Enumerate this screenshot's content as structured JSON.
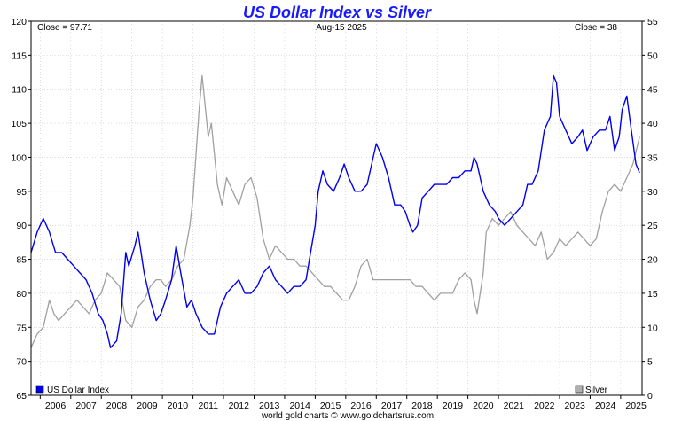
{
  "chart_data": {
    "type": "line",
    "title": "US Dollar Index vs Silver",
    "date_label": "Aug-15  2025",
    "close_left": "Close = 97.71",
    "close_right": "Close = 38",
    "footer": "world gold charts © www.goldchartsrus.com",
    "x_ticks": [
      "2006",
      "2007",
      "2008",
      "2009",
      "2010",
      "2011",
      "2012",
      "2013",
      "2014",
      "2015",
      "2016",
      "2017",
      "2018",
      "2019",
      "2020",
      "2021",
      "2022",
      "2023",
      "2024",
      "2025"
    ],
    "y_left_ticks": [
      65,
      70,
      75,
      80,
      85,
      90,
      95,
      100,
      105,
      110,
      115,
      120
    ],
    "y_right_ticks": [
      0,
      5,
      10,
      15,
      20,
      25,
      30,
      35,
      40,
      45,
      50,
      55
    ],
    "y_left_lim": [
      65,
      120
    ],
    "y_right_lim": [
      0,
      55
    ],
    "x_lim": [
      2005.7,
      2025.7
    ],
    "grid": true,
    "legend_left": "US Dollar Index",
    "legend_right": "Silver",
    "series": [
      {
        "name": "US Dollar Index",
        "axis": "left",
        "color": "#0000ee",
        "x": [
          2005.7,
          2005.9,
          2006.1,
          2006.3,
          2006.5,
          2006.7,
          2006.9,
          2007.1,
          2007.3,
          2007.5,
          2007.7,
          2007.9,
          2008.05,
          2008.2,
          2008.3,
          2008.5,
          2008.65,
          2008.8,
          2008.9,
          2009.1,
          2009.2,
          2009.4,
          2009.6,
          2009.8,
          2009.95,
          2010.1,
          2010.3,
          2010.45,
          2010.6,
          2010.8,
          2010.95,
          2011.1,
          2011.3,
          2011.5,
          2011.7,
          2011.9,
          2012.1,
          2012.3,
          2012.5,
          2012.7,
          2012.9,
          2013.1,
          2013.3,
          2013.5,
          2013.7,
          2013.9,
          2014.1,
          2014.3,
          2014.5,
          2014.7,
          2014.85,
          2015.0,
          2015.1,
          2015.25,
          2015.4,
          2015.6,
          2015.8,
          2015.95,
          2016.1,
          2016.3,
          2016.5,
          2016.7,
          2016.9,
          2017.0,
          2017.2,
          2017.4,
          2017.6,
          2017.8,
          2017.95,
          2018.1,
          2018.2,
          2018.35,
          2018.5,
          2018.7,
          2018.9,
          2019.1,
          2019.3,
          2019.5,
          2019.7,
          2019.9,
          2020.1,
          2020.2,
          2020.3,
          2020.5,
          2020.7,
          2020.9,
          2021.0,
          2021.2,
          2021.4,
          2021.6,
          2021.8,
          2021.95,
          2022.1,
          2022.3,
          2022.5,
          2022.7,
          2022.8,
          2022.9,
          2023.0,
          2023.2,
          2023.4,
          2023.6,
          2023.75,
          2023.9,
          2024.1,
          2024.3,
          2024.5,
          2024.65,
          2024.8,
          2024.95,
          2025.05,
          2025.2,
          2025.35,
          2025.5,
          2025.62
        ],
        "values": [
          86,
          89,
          91,
          89,
          86,
          86,
          85,
          84,
          83,
          82,
          80,
          77,
          76,
          74,
          72,
          73,
          77,
          86,
          84,
          87,
          89,
          83,
          79,
          76,
          77,
          79,
          82,
          87,
          83,
          78,
          79,
          77,
          75,
          74,
          74,
          78,
          80,
          81,
          82,
          80,
          80,
          81,
          83,
          84,
          82,
          81,
          80,
          81,
          81,
          82,
          86,
          90,
          95,
          98,
          96,
          95,
          97,
          99,
          97,
          95,
          95,
          96,
          100,
          102,
          100,
          97,
          93,
          93,
          92,
          90,
          89,
          90,
          94,
          95,
          96,
          96,
          96,
          97,
          97,
          98,
          98,
          100,
          99,
          95,
          93,
          92,
          91,
          90,
          91,
          92,
          93,
          96,
          96,
          98,
          104,
          106,
          112,
          111,
          106,
          104,
          102,
          103,
          104,
          101,
          103,
          104,
          104,
          106,
          101,
          103,
          107,
          109,
          104,
          99,
          97.71
        ]
      },
      {
        "name": "Silver",
        "axis": "right",
        "color": "#a0a0a0",
        "x": [
          2005.7,
          2005.9,
          2006.1,
          2006.3,
          2006.45,
          2006.6,
          2006.8,
          2007.0,
          2007.2,
          2007.4,
          2007.6,
          2007.8,
          2008.0,
          2008.2,
          2008.4,
          2008.6,
          2008.8,
          2009.0,
          2009.2,
          2009.4,
          2009.6,
          2009.8,
          2009.95,
          2010.1,
          2010.3,
          2010.5,
          2010.7,
          2010.9,
          2011.0,
          2011.2,
          2011.3,
          2011.5,
          2011.6,
          2011.8,
          2011.95,
          2012.1,
          2012.3,
          2012.5,
          2012.7,
          2012.9,
          2013.1,
          2013.3,
          2013.5,
          2013.7,
          2013.9,
          2014.1,
          2014.3,
          2014.5,
          2014.7,
          2014.9,
          2015.1,
          2015.3,
          2015.5,
          2015.7,
          2015.9,
          2016.1,
          2016.3,
          2016.5,
          2016.7,
          2016.9,
          2017.1,
          2017.3,
          2017.5,
          2017.7,
          2017.9,
          2018.1,
          2018.3,
          2018.5,
          2018.7,
          2018.9,
          2019.1,
          2019.3,
          2019.5,
          2019.7,
          2019.9,
          2020.1,
          2020.2,
          2020.3,
          2020.5,
          2020.6,
          2020.8,
          2021.0,
          2021.2,
          2021.4,
          2021.6,
          2021.8,
          2022.0,
          2022.2,
          2022.4,
          2022.6,
          2022.8,
          2023.0,
          2023.2,
          2023.4,
          2023.6,
          2023.8,
          2024.0,
          2024.2,
          2024.4,
          2024.6,
          2024.8,
          2025.0,
          2025.2,
          2025.4,
          2025.62
        ],
        "values": [
          7,
          9,
          10,
          14,
          12,
          11,
          12,
          13,
          14,
          13,
          12,
          14,
          15,
          18,
          17,
          16,
          11,
          10,
          13,
          14,
          16,
          17,
          17,
          16,
          17,
          19,
          20,
          25,
          29,
          42,
          47,
          38,
          40,
          31,
          28,
          32,
          30,
          28,
          31,
          32,
          29,
          23,
          20,
          22,
          21,
          20,
          20,
          19,
          19,
          18,
          17,
          16,
          16,
          15,
          14,
          14,
          16,
          19,
          20,
          17,
          17,
          17,
          17,
          17,
          17,
          17,
          16,
          16,
          15,
          14,
          15,
          15,
          15,
          17,
          18,
          17,
          14,
          12,
          18,
          24,
          26,
          25,
          26,
          27,
          25,
          24,
          23,
          22,
          24,
          20,
          21,
          23,
          22,
          23,
          24,
          23,
          22,
          23,
          27,
          30,
          31,
          30,
          32,
          34,
          38
        ]
      }
    ]
  }
}
